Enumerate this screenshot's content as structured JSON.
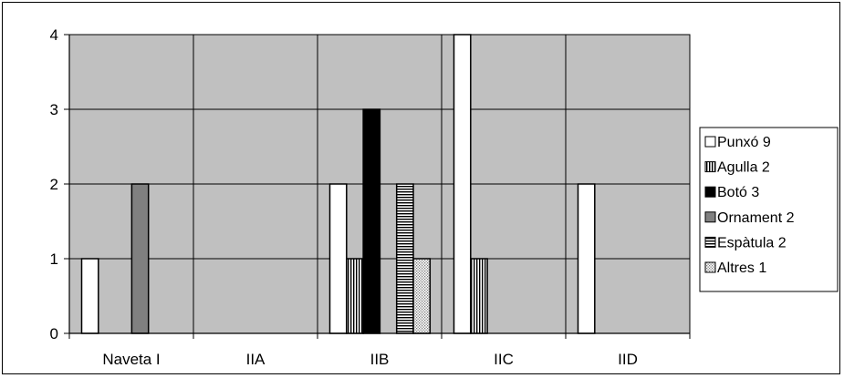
{
  "chart_data": {
    "type": "bar",
    "categories": [
      "Naveta I",
      "IIA",
      "IIB",
      "IIC",
      "IID"
    ],
    "y_ticks": [
      "0",
      "1",
      "2",
      "3",
      "4"
    ],
    "ylim": [
      0,
      4
    ],
    "grid": true,
    "legend_position": "right",
    "series": [
      {
        "name": "Punxó 9",
        "values": [
          1,
          0,
          2,
          4,
          2
        ],
        "fill": "#ffffff",
        "pattern": "solid"
      },
      {
        "name": "Agulla 2",
        "values": [
          0,
          0,
          1,
          1,
          0
        ],
        "fill": "#ffffff",
        "pattern": "vertical-lines"
      },
      {
        "name": "Botó 3",
        "values": [
          0,
          0,
          3,
          0,
          0
        ],
        "fill": "#000000",
        "pattern": "solid"
      },
      {
        "name": "Ornament 2",
        "values": [
          2,
          0,
          0,
          0,
          0
        ],
        "fill": "#808080",
        "pattern": "solid"
      },
      {
        "name": "Espàtula 2",
        "values": [
          0,
          0,
          2,
          0,
          0
        ],
        "fill": "#ffffff",
        "pattern": "horizontal-lines"
      },
      {
        "name": "Altres 1",
        "values": [
          0,
          0,
          1,
          0,
          0
        ],
        "fill": "#c0c0c0",
        "pattern": "dots"
      }
    ],
    "colors": {
      "plot_background": "#c0c0c0",
      "gridline": "#000000"
    }
  }
}
